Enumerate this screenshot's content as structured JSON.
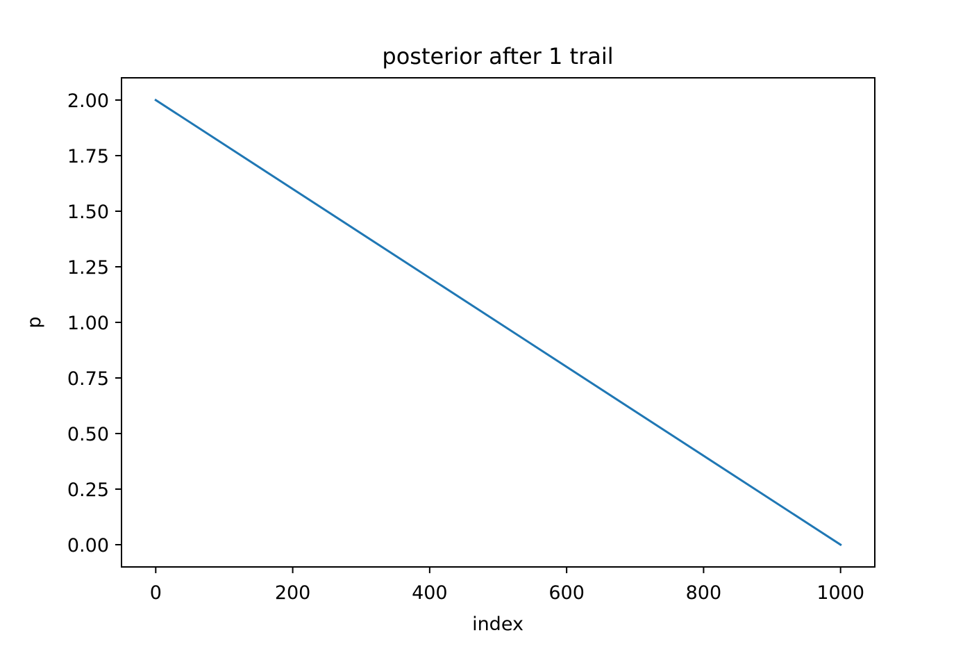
{
  "chart_data": {
    "type": "line",
    "title": "posterior after 1 trail",
    "xlabel": "index",
    "ylabel": "p",
    "xlim": [
      -50,
      1050
    ],
    "ylim": [
      -0.1,
      2.1
    ],
    "xticks": [
      0,
      200,
      400,
      600,
      800,
      1000
    ],
    "xtick_labels": [
      "0",
      "200",
      "400",
      "600",
      "800",
      "1000"
    ],
    "yticks": [
      0.0,
      0.25,
      0.5,
      0.75,
      1.0,
      1.25,
      1.5,
      1.75,
      2.0
    ],
    "ytick_labels": [
      "0.00",
      "0.25",
      "0.50",
      "0.75",
      "1.00",
      "1.25",
      "1.50",
      "1.75",
      "2.00"
    ],
    "grid": false,
    "series": [
      {
        "color": "#1f77b4",
        "x": [
          0,
          1000
        ],
        "y": [
          2.0,
          0.0
        ]
      }
    ]
  }
}
